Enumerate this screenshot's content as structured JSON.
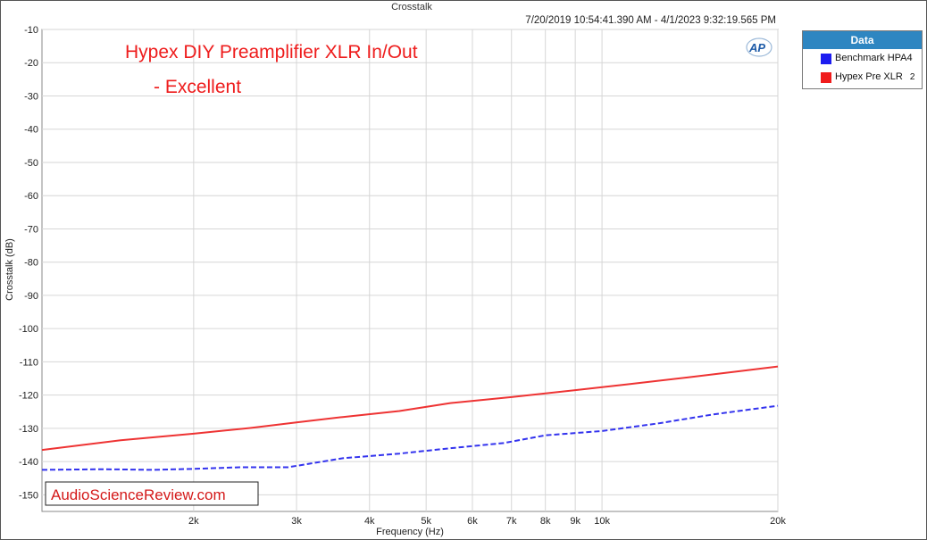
{
  "chart_data": {
    "type": "line",
    "title": "Crosstalk",
    "timestamp": "7/20/2019 10:54:41.390 AM - 4/1/2023 9:32:19.565 PM",
    "annotation_line1": "Hypex DIY Preamplifier XLR In/Out",
    "annotation_line2": "- Excellent",
    "watermark": "AudioScienceReview.com",
    "logo_text": "AP",
    "xlabel": "Frequency (Hz)",
    "ylabel": "Crosstalk (dB)",
    "x_scale": "log",
    "xlim": [
      1100,
      20000
    ],
    "ylim": [
      -155,
      -10
    ],
    "grid": true,
    "x_ticks": [
      {
        "value": 2000,
        "label": "2k"
      },
      {
        "value": 3000,
        "label": "3k"
      },
      {
        "value": 4000,
        "label": "4k"
      },
      {
        "value": 5000,
        "label": "5k"
      },
      {
        "value": 6000,
        "label": "6k"
      },
      {
        "value": 7000,
        "label": "7k"
      },
      {
        "value": 8000,
        "label": "8k"
      },
      {
        "value": 9000,
        "label": "9k"
      },
      {
        "value": 10000,
        "label": "10k"
      },
      {
        "value": 20000,
        "label": "20k"
      }
    ],
    "y_ticks": [
      -10,
      -20,
      -30,
      -40,
      -50,
      -60,
      -70,
      -80,
      -90,
      -100,
      -110,
      -120,
      -130,
      -140,
      -150
    ],
    "legend": {
      "title": "Data",
      "placement": "right"
    },
    "series": [
      {
        "name": "Benchmark HPA4",
        "color": "#3333ee",
        "style": "dashed",
        "x": [
          1100,
          1400,
          1700,
          2000,
          2400,
          2900,
          3600,
          4500,
          5500,
          6800,
          8000,
          10000,
          12500,
          15500,
          20000
        ],
        "y": [
          -142.5,
          -142.3,
          -142.5,
          -142.2,
          -141.7,
          -141.7,
          -139.0,
          -137.6,
          -136.0,
          -134.4,
          -132.1,
          -130.8,
          -128.5,
          -125.8,
          -123.2
        ]
      },
      {
        "name": "Hypex Pre XLR",
        "name_suffix": "2",
        "color": "#ee3333",
        "style": "solid",
        "x": [
          1100,
          1500,
          2000,
          2500,
          3000,
          3600,
          4500,
          5500,
          7000,
          9000,
          11000,
          14000,
          17000,
          20000
        ],
        "y": [
          -136.5,
          -133.6,
          -131.6,
          -129.9,
          -128.2,
          -126.6,
          -124.8,
          -122.4,
          -120.6,
          -118.5,
          -116.8,
          -114.7,
          -112.9,
          -111.4
        ]
      }
    ]
  }
}
